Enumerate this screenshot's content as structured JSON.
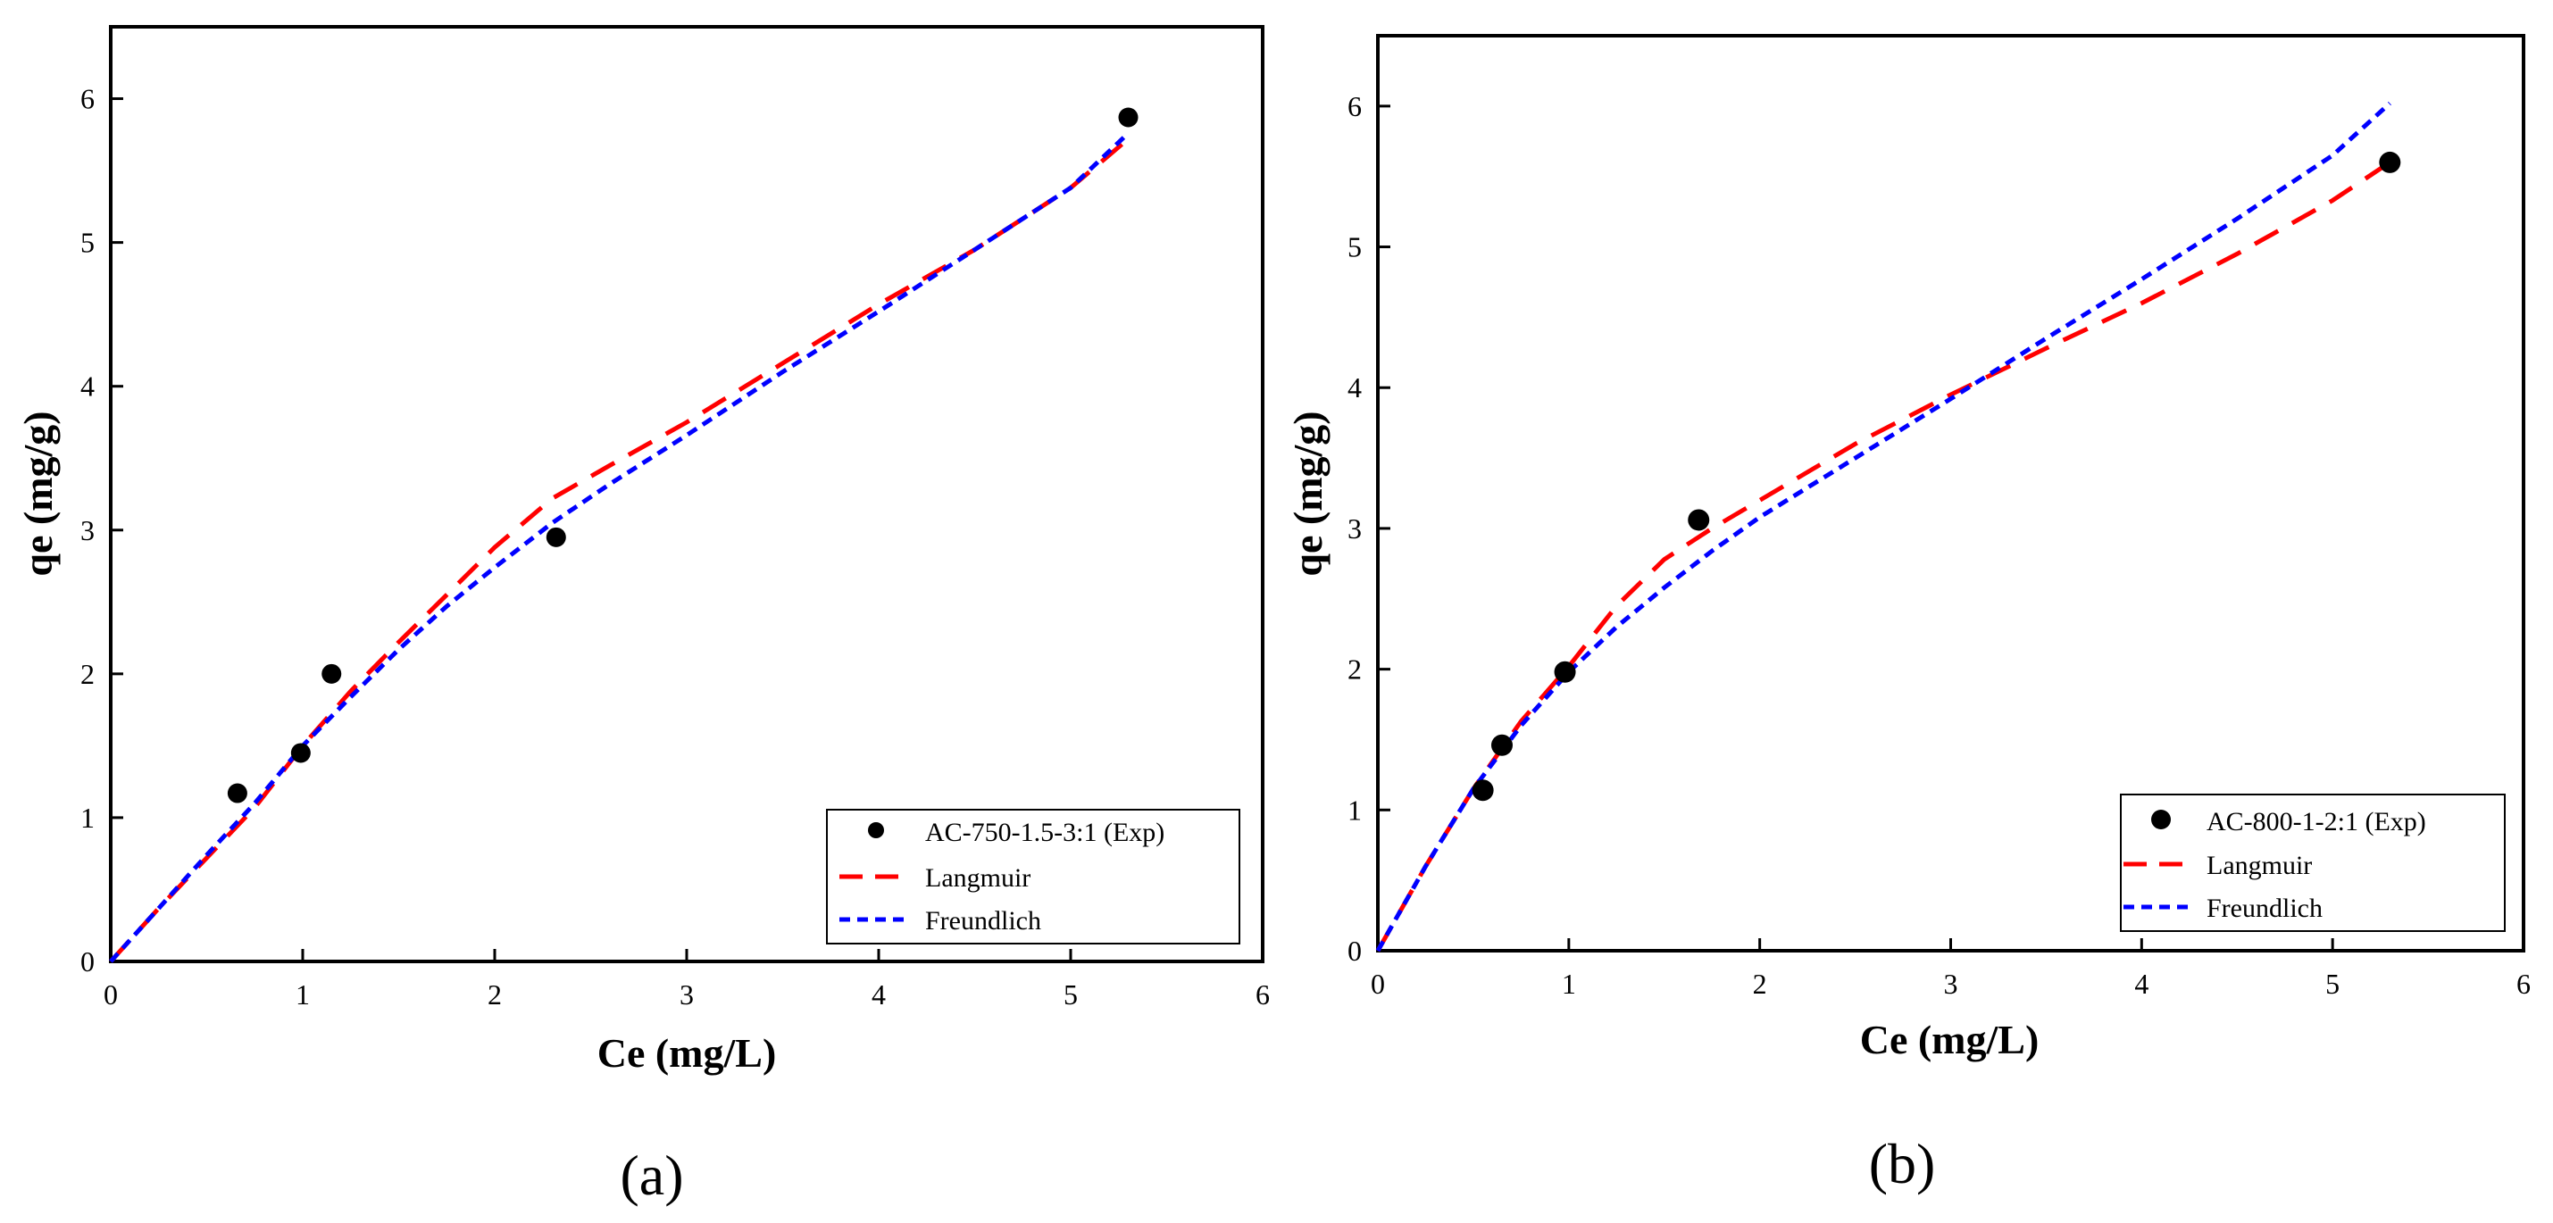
{
  "chart_data": [
    {
      "type": "scatter",
      "panel_label": "(a)",
      "xlabel": "Ce (mg/L)",
      "ylabel": "qe (mg/g)",
      "xlim": [
        0,
        6
      ],
      "ylim": [
        0,
        6.5
      ],
      "xticks": [
        0,
        1,
        2,
        3,
        4,
        5,
        6
      ],
      "yticks": [
        0,
        1,
        2,
        3,
        4,
        5,
        6
      ],
      "legend_position": "bottom-right",
      "series": [
        {
          "name": "AC-750-1.5-3:1 (Exp)",
          "kind": "points",
          "color": "#000000",
          "x": [
            0.66,
            0.99,
            1.15,
            2.32,
            5.3
          ],
          "y": [
            1.17,
            1.45,
            2.0,
            2.95,
            5.87
          ]
        },
        {
          "name": "Langmuir",
          "kind": "line",
          "style": "long-dash",
          "color": "#ff0000",
          "x": [
            0,
            0.25,
            0.5,
            0.75,
            1.0,
            1.25,
            1.5,
            1.75,
            2.0,
            2.3,
            2.6,
            3.0,
            3.5,
            4.0,
            4.5,
            5.0,
            5.3
          ],
          "y": [
            0,
            0.37,
            0.72,
            1.07,
            1.5,
            1.88,
            2.22,
            2.55,
            2.88,
            3.22,
            3.45,
            3.75,
            4.16,
            4.57,
            4.95,
            5.38,
            5.72
          ]
        },
        {
          "name": "Freundlich",
          "kind": "line",
          "style": "short-dash",
          "color": "#0000ff",
          "x": [
            0,
            0.25,
            0.5,
            0.75,
            1.0,
            1.25,
            1.5,
            1.75,
            2.0,
            2.3,
            2.6,
            3.0,
            3.5,
            4.0,
            4.5,
            5.0,
            5.3
          ],
          "y": [
            0,
            0.37,
            0.74,
            1.1,
            1.5,
            1.84,
            2.17,
            2.47,
            2.74,
            3.05,
            3.32,
            3.66,
            4.1,
            4.52,
            4.95,
            5.38,
            5.76
          ]
        }
      ]
    },
    {
      "type": "scatter",
      "panel_label": "(b)",
      "xlabel": "Ce (mg/L)",
      "ylabel": "qe (mg/g)",
      "xlim": [
        0,
        6
      ],
      "ylim": [
        0,
        6.5
      ],
      "xticks": [
        0,
        1,
        2,
        3,
        4,
        5,
        6
      ],
      "yticks": [
        0,
        1,
        2,
        3,
        4,
        5,
        6
      ],
      "legend_position": "bottom-right",
      "series": [
        {
          "name": "AC-800-1-2:1 (Exp)",
          "kind": "points",
          "color": "#000000",
          "x": [
            0.55,
            0.65,
            0.98,
            1.68,
            5.3
          ],
          "y": [
            1.14,
            1.46,
            1.98,
            3.06,
            5.6
          ]
        },
        {
          "name": "Langmuir",
          "kind": "line",
          "style": "long-dash",
          "color": "#ff0000",
          "x": [
            0,
            0.25,
            0.5,
            0.75,
            1.0,
            1.25,
            1.5,
            1.75,
            2.0,
            2.5,
            3.0,
            3.5,
            4.0,
            4.5,
            5.0,
            5.3
          ],
          "y": [
            0,
            0.6,
            1.15,
            1.63,
            2.02,
            2.45,
            2.78,
            3.0,
            3.2,
            3.6,
            3.95,
            4.28,
            4.6,
            4.95,
            5.33,
            5.6
          ]
        },
        {
          "name": "Freundlich",
          "kind": "line",
          "style": "short-dash",
          "color": "#0000ff",
          "x": [
            0,
            0.25,
            0.5,
            0.75,
            1.0,
            1.25,
            1.5,
            1.75,
            2.0,
            2.5,
            3.0,
            3.5,
            4.0,
            4.5,
            5.0,
            5.3
          ],
          "y": [
            0,
            0.6,
            1.15,
            1.6,
            1.98,
            2.3,
            2.58,
            2.84,
            3.08,
            3.5,
            3.92,
            4.35,
            4.77,
            5.2,
            5.65,
            6.02
          ]
        }
      ]
    }
  ]
}
